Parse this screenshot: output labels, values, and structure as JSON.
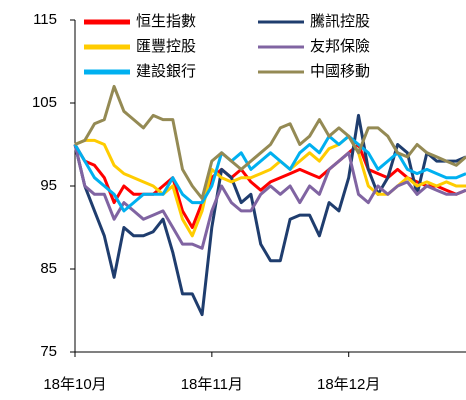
{
  "chart_data": {
    "type": "line",
    "categories": [
      "18年10月",
      null,
      null,
      null,
      null,
      null,
      null,
      null,
      null,
      null,
      null,
      null,
      null,
      null,
      "18年11月",
      null,
      null,
      null,
      null,
      null,
      null,
      null,
      null,
      null,
      null,
      null,
      null,
      null,
      "18年12月",
      null,
      null,
      null,
      null,
      null,
      null,
      null,
      null,
      null,
      null,
      null,
      null
    ],
    "ylim": [
      75,
      115
    ],
    "yticks": [
      75,
      85,
      95,
      105,
      115
    ],
    "series": [
      {
        "name": "恒生指數",
        "color": "#ff0000",
        "values": [
          100,
          98,
          97.5,
          96,
          93,
          95,
          94,
          94,
          94,
          95,
          96,
          92,
          90,
          93,
          96,
          97,
          96,
          97,
          95.5,
          94.5,
          95.5,
          96,
          96.5,
          97,
          96.5,
          96,
          97,
          98,
          99,
          100,
          97,
          96.5,
          96,
          97,
          96,
          95.5,
          95,
          95,
          94.5,
          94,
          94.5
        ]
      },
      {
        "name": "騰訊控股",
        "color": "#1f3d6e",
        "values": [
          100,
          95,
          92,
          89,
          84,
          90,
          89,
          89,
          89.5,
          91,
          87,
          82,
          82,
          79.5,
          90,
          97,
          96,
          93,
          94,
          88,
          86,
          86,
          91,
          91.5,
          91.5,
          89,
          93,
          92,
          96,
          103.5,
          97,
          94,
          96,
          100,
          99,
          94,
          99,
          98,
          98,
          98,
          98.5
        ]
      },
      {
        "name": "匯豐控股",
        "color": "#ffcc00",
        "values": [
          100,
          100.5,
          100.5,
          100,
          97.5,
          96.5,
          96,
          95.5,
          95,
          94,
          95,
          91,
          89,
          92,
          97,
          96,
          95.5,
          96,
          96,
          96.5,
          97,
          98,
          97,
          98,
          99,
          98,
          99.5,
          100,
          101,
          99,
          95,
          94,
          94,
          95,
          96,
          95,
          95.5,
          95,
          95.5,
          95,
          95
        ]
      },
      {
        "name": "友邦保險",
        "color": "#8064a2",
        "values": [
          100,
          95,
          94,
          94,
          91,
          93,
          92,
          91,
          91.5,
          92,
          90,
          88,
          88,
          87.5,
          92,
          95,
          93,
          92,
          92,
          94,
          95,
          94,
          95,
          93,
          95,
          94,
          97,
          98,
          99,
          94,
          93,
          95,
          94,
          95,
          95.5,
          94,
          95,
          94.5,
          94,
          94,
          94.5
        ]
      },
      {
        "name": "建設銀行",
        "color": "#00b0f0",
        "values": [
          100,
          98,
          96,
          95,
          94,
          92,
          93,
          94,
          94,
          94,
          96,
          94,
          93,
          93,
          95,
          99,
          98,
          99,
          97,
          98,
          99,
          98,
          97,
          99,
          100,
          99,
          101,
          100,
          101,
          100,
          99,
          97,
          98,
          99,
          97,
          96.5,
          97,
          96.5,
          96,
          96,
          96.5
        ]
      },
      {
        "name": "中國移動",
        "color": "#948a54",
        "values": [
          100,
          100.5,
          102.5,
          103,
          107,
          104,
          103,
          102,
          103.5,
          103,
          103,
          97,
          95,
          93.5,
          98,
          99,
          98,
          97,
          98,
          99,
          100,
          102,
          102.5,
          100,
          101,
          103,
          101,
          102,
          101,
          99,
          102,
          102,
          101,
          99,
          98.5,
          100,
          99,
          98.5,
          98,
          97.5,
          98.5
        ]
      }
    ]
  }
}
